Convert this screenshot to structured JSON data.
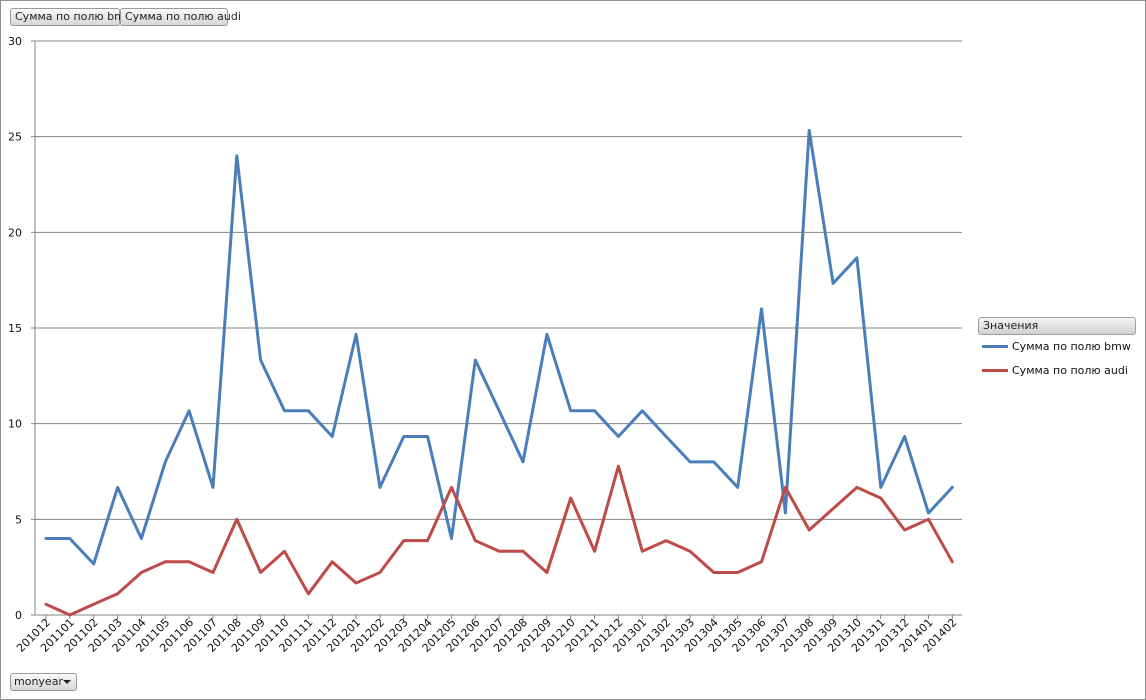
{
  "field_buttons": {
    "bmw_label": "Сумма по полю bmw",
    "audi_label": "Сумма по полю audi"
  },
  "legend": {
    "header": "Значения",
    "items": [
      {
        "label": "Сумма по полю bmw",
        "color": "#4a7ebb"
      },
      {
        "label": "Сумма по полю audi",
        "color": "#be4b48"
      }
    ]
  },
  "axis_field": {
    "label": "monyear",
    "icon": "chevron-down-icon"
  },
  "chart_data": {
    "type": "line",
    "title": "",
    "xlabel": "",
    "ylabel": "",
    "ylim": [
      0,
      30
    ],
    "yticks": [
      0,
      5,
      10,
      15,
      20,
      25,
      30
    ],
    "grid": true,
    "legend_position": "right",
    "categories": [
      "201012",
      "201101",
      "201102",
      "201103",
      "201104",
      "201105",
      "201106",
      "201107",
      "201108",
      "201109",
      "201110",
      "201111",
      "201112",
      "201201",
      "201202",
      "201203",
      "201204",
      "201205",
      "201206",
      "201207",
      "201208",
      "201209",
      "201210",
      "201211",
      "201212",
      "201301",
      "201302",
      "201303",
      "201304",
      "201305",
      "201306",
      "201307",
      "201308",
      "201309",
      "201310",
      "201311",
      "201312",
      "201401",
      "201402"
    ],
    "series": [
      {
        "name": "Сумма по полю bmw",
        "color": "#4a7ebb",
        "values": [
          4.0,
          4.0,
          2.67,
          6.67,
          4.0,
          8.0,
          10.67,
          6.67,
          24.0,
          13.33,
          10.67,
          10.67,
          9.33,
          14.67,
          6.67,
          9.33,
          9.33,
          4.0,
          13.33,
          10.67,
          8.0,
          14.67,
          10.67,
          10.67,
          9.33,
          10.67,
          9.33,
          8.0,
          8.0,
          6.67,
          16.0,
          5.33,
          25.33,
          17.33,
          18.67,
          6.67,
          9.33,
          5.33,
          6.67
        ]
      },
      {
        "name": "Сумма по полю audi",
        "color": "#be4b48",
        "values": [
          0.56,
          0.0,
          0.56,
          1.11,
          2.22,
          2.78,
          2.78,
          2.22,
          5.0,
          2.22,
          3.33,
          1.11,
          2.78,
          1.67,
          2.22,
          3.89,
          3.89,
          6.67,
          3.89,
          3.33,
          3.33,
          2.22,
          6.11,
          3.33,
          7.78,
          3.33,
          3.89,
          3.33,
          2.22,
          2.22,
          2.78,
          6.67,
          4.44,
          5.56,
          6.67,
          6.11,
          4.44,
          5.0,
          2.78
        ]
      }
    ]
  }
}
